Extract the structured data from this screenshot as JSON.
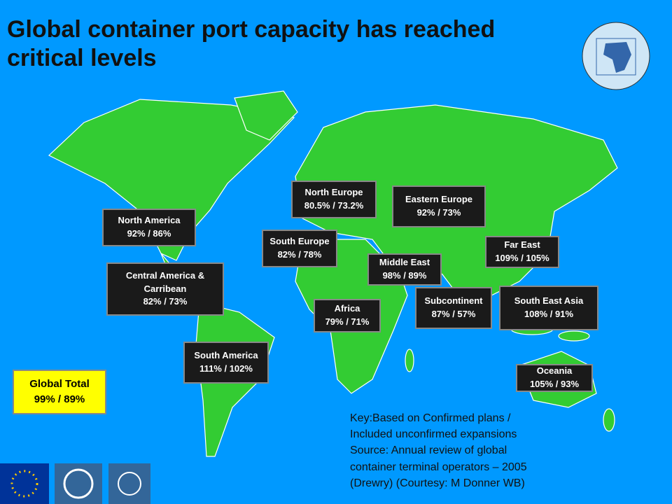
{
  "header": {
    "title_lines": [
      "Global container port capacity has reached",
      "critical levels"
    ]
  },
  "regions": [
    {
      "lines": [
        "North America",
        "92% / 86%"
      ]
    },
    {
      "lines": [
        "Central America &",
        "Carribean",
        "82% / 73%"
      ]
    },
    {
      "lines": [
        "South America",
        "111% / 102%"
      ]
    },
    {
      "lines": [
        "North Europe",
        "80.5% / 73.2%"
      ]
    },
    {
      "lines": [
        "South Europe",
        "82% / 78%"
      ]
    },
    {
      "lines": [
        "Eastern Europe",
        "92% / 73%"
      ]
    },
    {
      "lines": [
        "Middle East",
        "98% / 89%"
      ]
    },
    {
      "lines": [
        "Africa",
        "79% / 71%"
      ]
    },
    {
      "lines": [
        "Subcontinent",
        "87% / 57%"
      ]
    },
    {
      "lines": [
        "Far East",
        "109% / 105%"
      ]
    },
    {
      "lines": [
        "South East Asia",
        "108% / 91%"
      ]
    },
    {
      "lines": [
        "Oceania",
        "105% / 93%"
      ]
    }
  ],
  "global_total": {
    "lines": [
      "Global Total",
      "99% / 89%"
    ]
  },
  "key": {
    "lines": [
      "Key:Based on Confirmed plans /",
      "Included unconfirmed expansions",
      "Source: Annual review of global",
      "container terminal operators – 2005",
      "(Drewry) (Courtesy: M Donner WB)"
    ]
  }
}
